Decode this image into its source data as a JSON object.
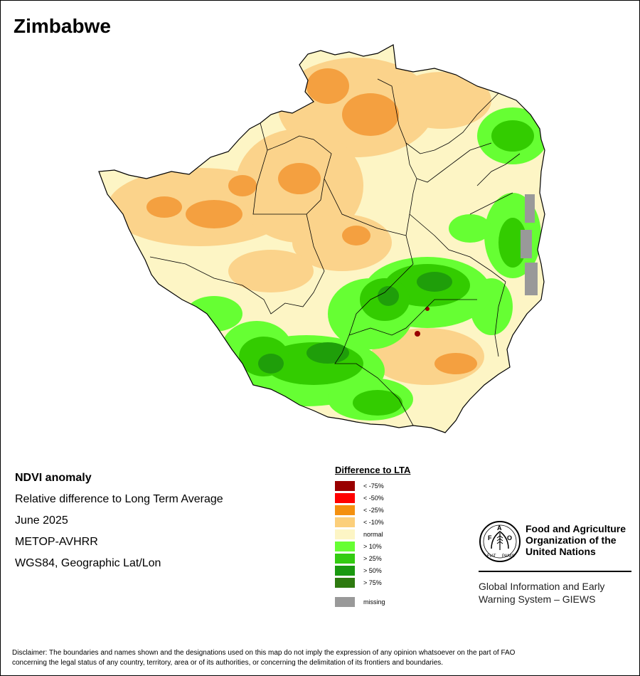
{
  "map": {
    "title": "Zimbabwe",
    "colors": {
      "outside": "#ffffff",
      "normal": "#fdf5c5",
      "neg10": "#fbd38b",
      "neg25": "#f4a040",
      "neg50": "#ff0000",
      "neg75": "#990000",
      "pos10": "#66ff33",
      "pos25": "#33cc00",
      "pos50": "#1f9e0a",
      "pos75": "#2c7a10",
      "missing": "#999999",
      "boundary": "#000000"
    }
  },
  "meta": {
    "lines": [
      "NDVI anomaly",
      "Relative difference to Long Term Average",
      "June 2025",
      "METOP-AVHRR",
      "WGS84, Geographic Lat/Lon"
    ]
  },
  "legend": {
    "title": "Difference to LTA",
    "items": [
      {
        "label": "< -75%",
        "color": "#990000"
      },
      {
        "label": "< -50%",
        "color": "#ff0000"
      },
      {
        "label": "< -25%",
        "color": "#f4900f"
      },
      {
        "label": "< -10%",
        "color": "#fccf7a"
      },
      {
        "label": "normal",
        "color": "#fdf5c5"
      },
      {
        "label": "> 10%",
        "color": "#66ff33"
      },
      {
        "label": "> 25%",
        "color": "#33cc11"
      },
      {
        "label": "> 50%",
        "color": "#1a9910"
      },
      {
        "label": "> 75%",
        "color": "#2e7a10"
      }
    ],
    "missing": {
      "label": "missing",
      "color": "#999999"
    }
  },
  "org": {
    "name_line1": "Food and Agriculture",
    "name_line2": "Organization of the",
    "name_line3": "United Nations",
    "logo_letters": [
      "F",
      "A",
      "O"
    ],
    "logo_motto": [
      "FIAT",
      "PANIS"
    ],
    "system_line1": "Global Information and Early",
    "system_line2": "Warning System – GIEWS"
  },
  "disclaimer": {
    "line1": "Disclaimer: The boundaries and names shown and the designations used on this map do not imply the expression of any opinion whatsoever on the part of FAO",
    "line2": "concerning the legal status of any country, territory, area or of its authorities, or concerning the delimitation of its frontiers and boundaries."
  }
}
